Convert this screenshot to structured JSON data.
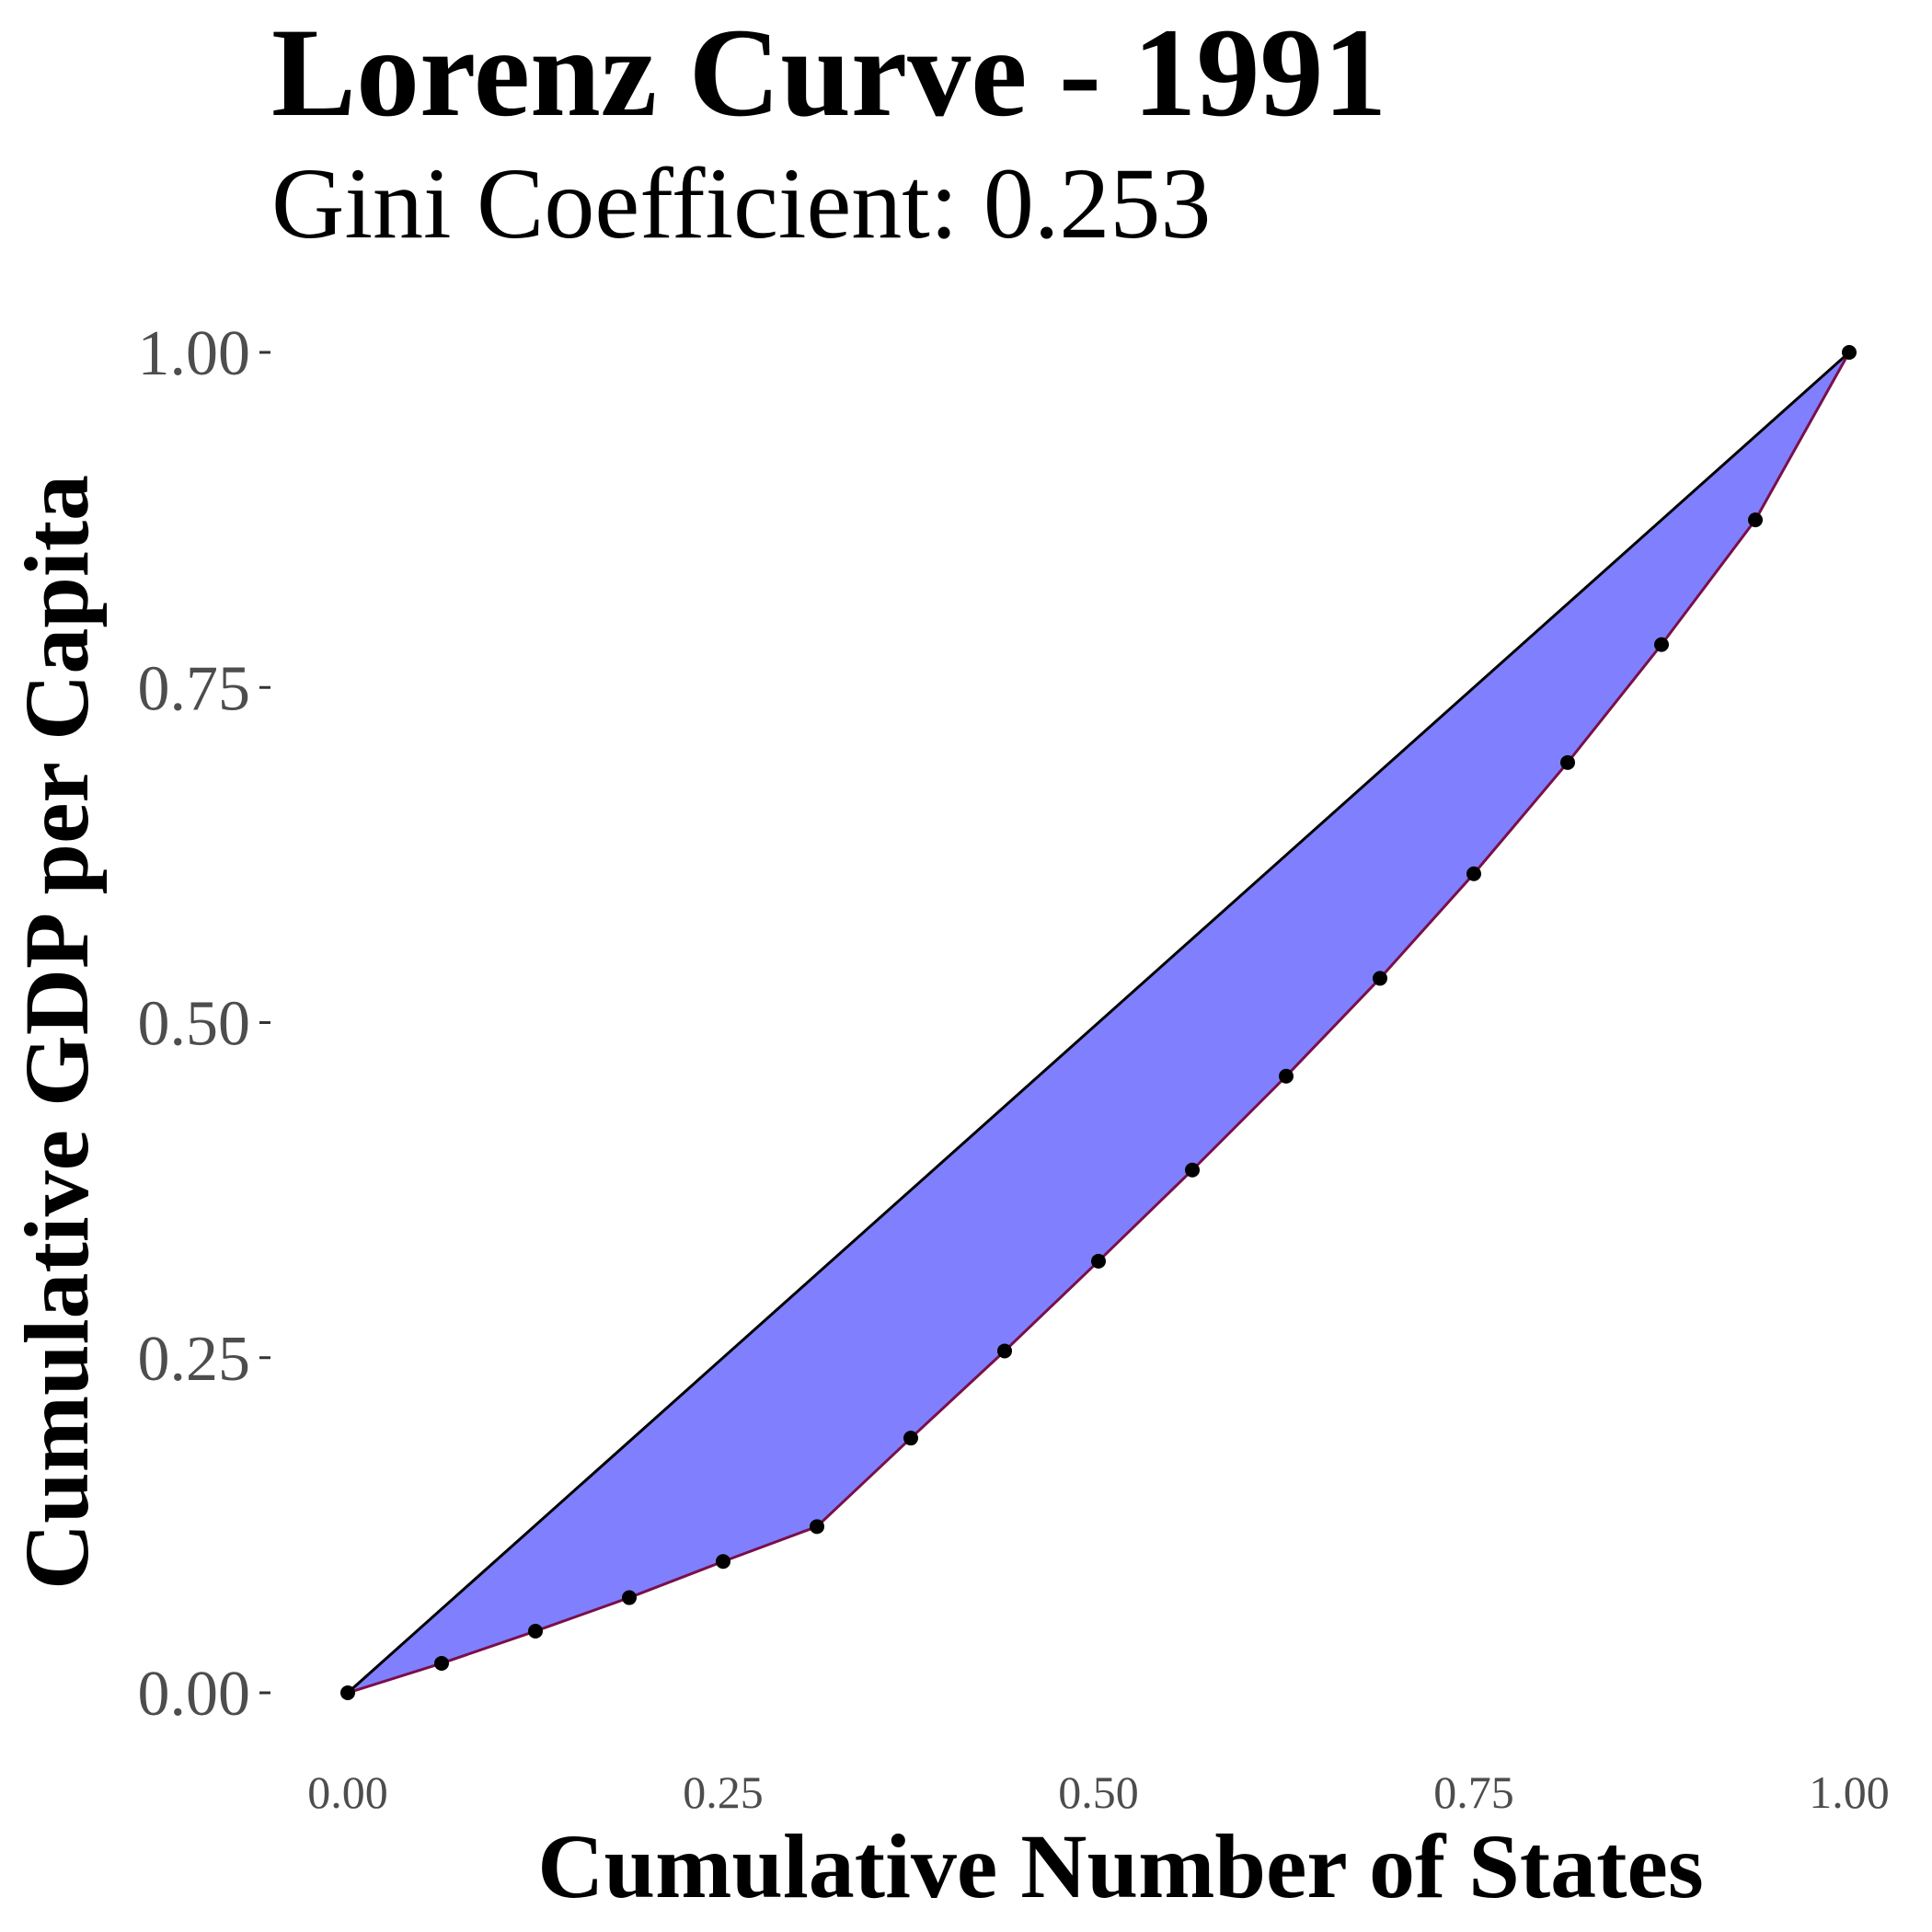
{
  "chart_data": {
    "type": "area",
    "title": "Lorenz Curve - 1991",
    "subtitle": "Gini Coefficient:  0.253",
    "xlabel": "Cumulative Number of States",
    "ylabel": "Cumulative GDP per Capita",
    "xlim": [
      0,
      1
    ],
    "ylim": [
      0,
      1
    ],
    "x_ticks": [
      "0.00",
      "0.25",
      "0.50",
      "0.75",
      "1.00"
    ],
    "y_ticks": [
      "0.00",
      "0.25",
      "0.50",
      "0.75",
      "1.00"
    ],
    "grid": false,
    "legend": "none",
    "fill_color": "#8080ff",
    "curve_color": "#7a0f4a",
    "equality_line_color": "#000000",
    "point_color": "#000000",
    "equality_line": {
      "x": [
        0,
        1
      ],
      "y": [
        0,
        1
      ]
    },
    "x": [
      0.0,
      0.0625,
      0.125,
      0.1875,
      0.25,
      0.3125,
      0.375,
      0.4375,
      0.5,
      0.5625,
      0.625,
      0.6875,
      0.75,
      0.8125,
      0.875,
      0.9375,
      1.0
    ],
    "y": [
      0.0,
      0.022,
      0.046,
      0.071,
      0.098,
      0.124,
      0.19,
      0.255,
      0.322,
      0.39,
      0.46,
      0.533,
      0.611,
      0.694,
      0.782,
      0.875,
      1.0
    ]
  }
}
